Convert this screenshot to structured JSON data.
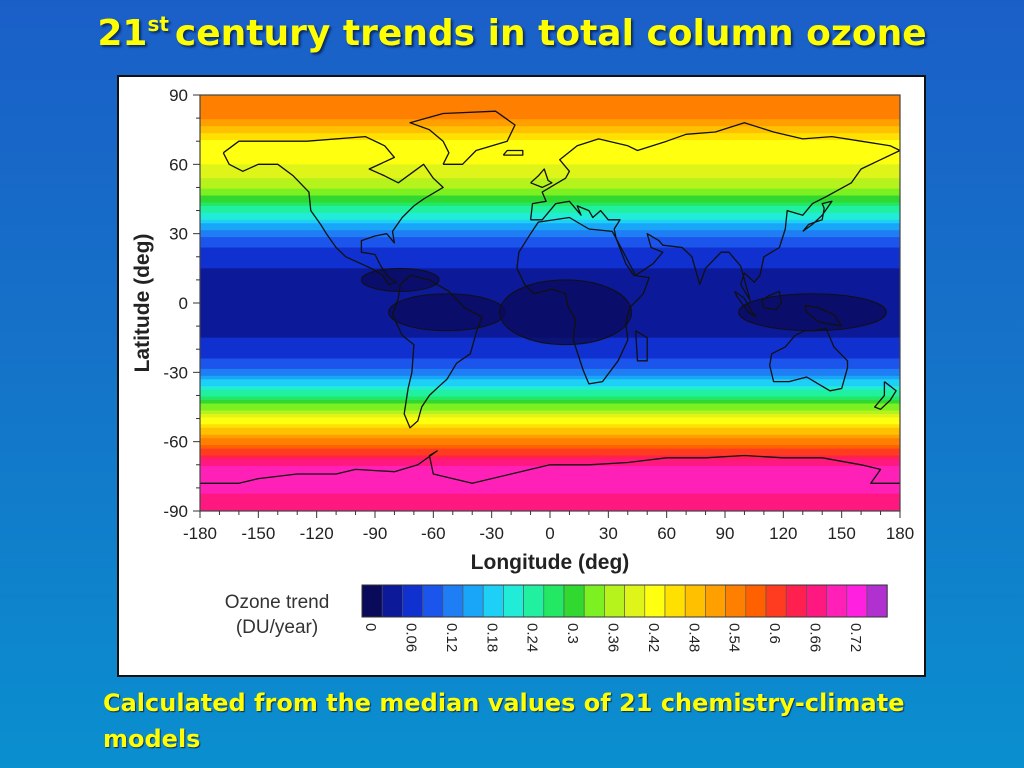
{
  "slide": {
    "title_number": "21",
    "title_superscript": "st",
    "title_rest": "century trends in total column ozone",
    "caption": "Calculated from the median values of 21 chemistry-climate models"
  },
  "chart_data": {
    "type": "heatmap",
    "title": "",
    "xlabel": "Longitude (deg)",
    "ylabel": "Latitude (deg)",
    "xlim": [
      -180,
      180
    ],
    "ylim": [
      -90,
      90
    ],
    "xticks": [
      -180,
      -150,
      -120,
      -90,
      -60,
      -30,
      0,
      30,
      60,
      90,
      120,
      150,
      180
    ],
    "yticks": [
      90,
      60,
      30,
      0,
      -30,
      -60,
      -90
    ],
    "zonal_profile": {
      "latitudes": [
        90,
        80,
        70,
        60,
        50,
        40,
        30,
        20,
        10,
        0,
        -10,
        -20,
        -30,
        -40,
        -50,
        -60,
        -70,
        -80,
        -90
      ],
      "ozone_trend": [
        0.55,
        0.54,
        0.45,
        0.42,
        0.37,
        0.25,
        0.13,
        0.07,
        0.05,
        0.05,
        0.05,
        0.07,
        0.13,
        0.27,
        0.42,
        0.55,
        0.69,
        0.7,
        0.66
      ]
    },
    "shaded_minimum_regions": [
      {
        "lon": -77,
        "lat": 10
      },
      {
        "lon": -53,
        "lat": -4
      },
      {
        "lon": 8,
        "lat": -4
      },
      {
        "lon": 135,
        "lat": -4
      }
    ],
    "colorbar": {
      "title": "Ozone trend",
      "units": "(DU/year)",
      "ticks": [
        "0",
        "0.06",
        "0.12",
        "0.18",
        "0.24",
        "0.3",
        "0.36",
        "0.42",
        "0.48",
        "0.54",
        "0.6",
        "0.66",
        "0.72"
      ],
      "levels": [
        0,
        0.03,
        0.06,
        0.09,
        0.12,
        0.15,
        0.18,
        0.21,
        0.24,
        0.27,
        0.3,
        0.33,
        0.36,
        0.39,
        0.42,
        0.45,
        0.48,
        0.51,
        0.54,
        0.57,
        0.6,
        0.63,
        0.66,
        0.69,
        0.72,
        0.75,
        0.78
      ],
      "colors": [
        "#0a0a5a",
        "#0c1a9a",
        "#1030d0",
        "#1c55ec",
        "#1f7ef4",
        "#1aa6f8",
        "#1ed0f6",
        "#20ecd8",
        "#20f0a0",
        "#22e864",
        "#30d830",
        "#7cf020",
        "#b6f21c",
        "#dff418",
        "#ffff10",
        "#ffe000",
        "#ffc000",
        "#ffa000",
        "#ff8000",
        "#ff6000",
        "#ff3c20",
        "#ff2050",
        "#ff1880",
        "#ff20b8",
        "#ff20e0",
        "#b030d0"
      ]
    },
    "grid": false,
    "legend_position": "bottom"
  }
}
